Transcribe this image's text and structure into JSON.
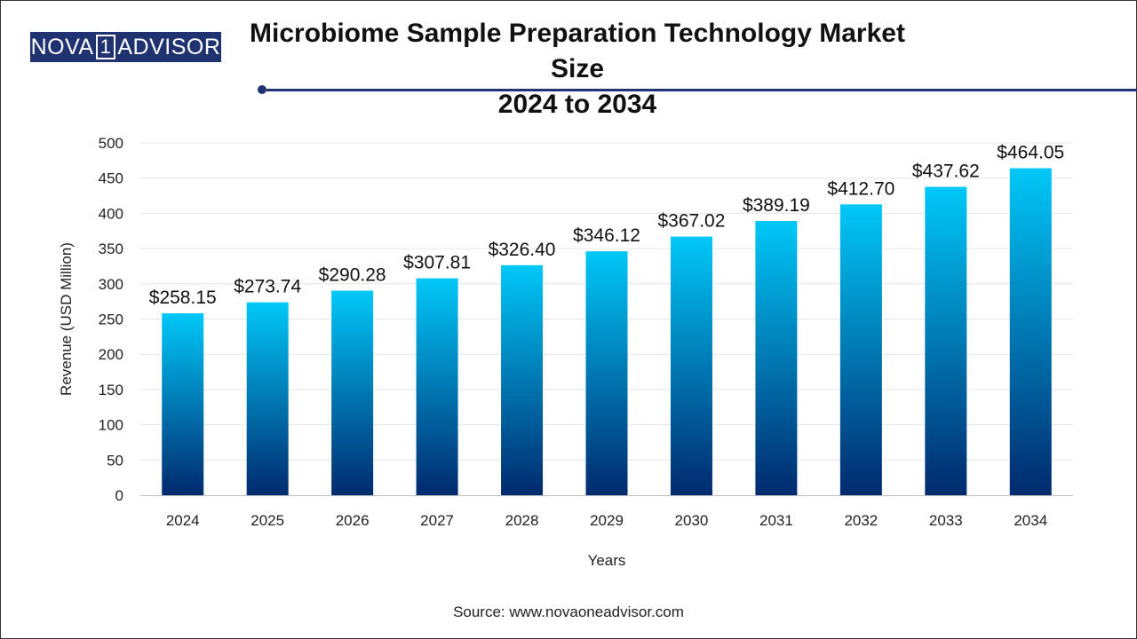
{
  "logo": {
    "left_text": "NOVA",
    "mark_text": "1",
    "right_text": "ADVISOR"
  },
  "title_line1": "Microbiome Sample Preparation Technology Market Size",
  "title_line2": "2024 to 2034",
  "source": "Source: www.novaoneadvisor.com",
  "colors": {
    "bar_top": "#00c8f8",
    "bar_bottom": "#002a6e",
    "brand": "#1f3370"
  },
  "chart_data": {
    "type": "bar",
    "categories": [
      "2024",
      "2025",
      "2026",
      "2027",
      "2028",
      "2029",
      "2030",
      "2031",
      "2032",
      "2033",
      "2034"
    ],
    "values": [
      258.15,
      273.74,
      290.28,
      307.81,
      326.4,
      346.12,
      367.02,
      389.19,
      412.7,
      437.62,
      464.05
    ],
    "data_labels": [
      "$258.15",
      "$273.74",
      "$290.28",
      "$307.81",
      "$326.40",
      "$346.12",
      "$367.02",
      "$389.19",
      "$412.70",
      "$437.62",
      "$464.05"
    ],
    "xlabel": "Years",
    "ylabel": "Revenue (USD Million)",
    "ylim": [
      0,
      500
    ],
    "yticks": [
      0,
      50,
      100,
      150,
      200,
      250,
      300,
      350,
      400,
      450,
      500
    ],
    "grid": true,
    "legend": "none"
  }
}
